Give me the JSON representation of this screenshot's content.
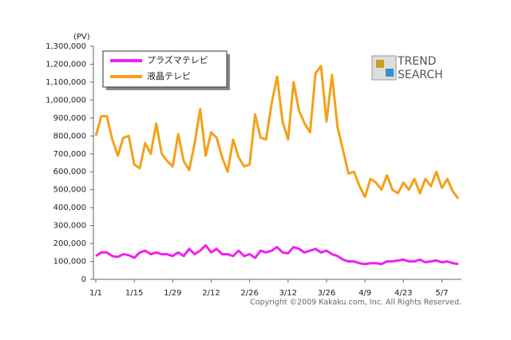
{
  "chart_data": {
    "type": "line",
    "y_unit": "(PV)",
    "categories": [
      "1/1",
      null,
      null,
      null,
      null,
      null,
      null,
      "1/15",
      null,
      null,
      null,
      null,
      null,
      null,
      "1/29",
      null,
      null,
      null,
      null,
      null,
      null,
      "2/12",
      null,
      null,
      null,
      null,
      null,
      null,
      "2/26",
      null,
      null,
      null,
      null,
      null,
      null,
      "3/12",
      null,
      null,
      null,
      null,
      null,
      null,
      "3/26",
      null,
      null,
      null,
      null,
      null,
      null,
      "4/9",
      null,
      null,
      null,
      null,
      null,
      null,
      "4/23",
      null,
      null,
      null,
      null,
      null,
      null,
      "5/7",
      null,
      null,
      null
    ],
    "series": [
      {
        "name": "プラズマテレビ",
        "color": "#ee22ee",
        "values": [
          130000,
          150000,
          150000,
          130000,
          125000,
          140000,
          135000,
          120000,
          150000,
          160000,
          140000,
          150000,
          140000,
          140000,
          130000,
          150000,
          130000,
          170000,
          140000,
          160000,
          190000,
          150000,
          170000,
          140000,
          140000,
          130000,
          160000,
          130000,
          140000,
          120000,
          160000,
          150000,
          160000,
          180000,
          150000,
          145000,
          180000,
          170000,
          150000,
          160000,
          170000,
          150000,
          160000,
          140000,
          130000,
          110000,
          100000,
          100000,
          90000,
          85000,
          90000,
          90000,
          85000,
          100000,
          100000,
          105000,
          110000,
          100000,
          100000,
          110000,
          95000,
          100000,
          105000,
          95000,
          100000,
          90000,
          85000
        ]
      },
      {
        "name": "液晶テレビ",
        "color": "#f5a01a",
        "values": [
          800000,
          910000,
          910000,
          780000,
          690000,
          790000,
          800000,
          640000,
          620000,
          760000,
          700000,
          870000,
          700000,
          660000,
          630000,
          810000,
          660000,
          610000,
          760000,
          950000,
          690000,
          820000,
          790000,
          680000,
          600000,
          780000,
          680000,
          630000,
          640000,
          920000,
          790000,
          780000,
          980000,
          1130000,
          880000,
          780000,
          1100000,
          940000,
          870000,
          820000,
          1150000,
          1190000,
          880000,
          1140000,
          850000,
          720000,
          590000,
          600000,
          520000,
          460000,
          560000,
          540000,
          500000,
          580000,
          500000,
          480000,
          540000,
          500000,
          560000,
          480000,
          560000,
          520000,
          600000,
          510000,
          560000,
          490000,
          450000
        ]
      }
    ],
    "ylim": [
      0,
      1300000
    ],
    "yticks": [
      0,
      {
        "value": 100000,
        "label": "100,000"
      },
      {
        "value": 200000,
        "label": "200,000"
      },
      {
        "value": 300000,
        "label": "300,000"
      },
      {
        "value": 400000,
        "label": "400,000"
      },
      {
        "value": 500000,
        "label": "500,000"
      },
      {
        "value": 600000,
        "label": "600,000"
      },
      {
        "value": 700000,
        "label": "700,000"
      },
      {
        "value": 800000,
        "label": "800,000"
      },
      {
        "value": 900000,
        "label": "900,000"
      },
      {
        "value": 1000000,
        "label": "1,000,000"
      },
      {
        "value": 1100000,
        "label": "1,100,000"
      },
      {
        "value": 1200000,
        "label": "1,200,000"
      },
      {
        "value": 1300000,
        "label": "1,300,000"
      }
    ],
    "legend": "upper left",
    "logo": [
      "TREND",
      "SEARCH"
    ],
    "copyright": "Copyright ©2009 Kakaku.com, Inc. All Rights Reserved."
  }
}
